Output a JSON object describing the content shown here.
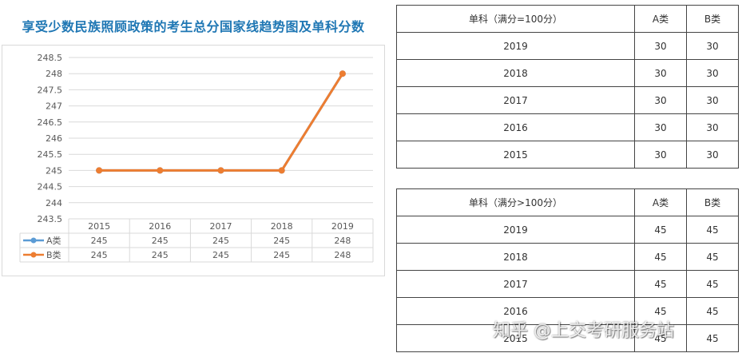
{
  "chart_data": {
    "type": "line",
    "title": "享受少数民族照顾政策的考生总分国家线趋势图及单科分数",
    "categories": [
      "2015",
      "2016",
      "2017",
      "2018",
      "2019"
    ],
    "series": [
      {
        "name": "A类",
        "values": [
          245,
          245,
          245,
          245,
          248
        ],
        "color": "#5b9bd5"
      },
      {
        "name": "B类",
        "values": [
          245,
          245,
          245,
          245,
          248
        ],
        "color": "#ed7d31"
      }
    ],
    "ylim": [
      243.5,
      248.5
    ],
    "yticks": [
      "248.5",
      "248",
      "247.5",
      "247",
      "246.5",
      "246",
      "245.5",
      "245",
      "244.5",
      "244",
      "243.5"
    ],
    "grid": true,
    "legend": "data-table"
  },
  "table1": {
    "headers": [
      "单科（满分=100分）",
      "A类",
      "B类"
    ],
    "rows": [
      [
        "2019",
        "30",
        "30"
      ],
      [
        "2018",
        "30",
        "30"
      ],
      [
        "2017",
        "30",
        "30"
      ],
      [
        "2016",
        "30",
        "30"
      ],
      [
        "2015",
        "30",
        "30"
      ]
    ]
  },
  "table2": {
    "headers": [
      "单科（满分>100分）",
      "A类",
      "B类"
    ],
    "rows": [
      [
        "2019",
        "45",
        "45"
      ],
      [
        "2018",
        "45",
        "45"
      ],
      [
        "2017",
        "45",
        "45"
      ],
      [
        "2016",
        "45",
        "45"
      ],
      [
        "2015",
        "45",
        "45"
      ]
    ]
  },
  "watermark": "知乎 @上交考研服务站"
}
